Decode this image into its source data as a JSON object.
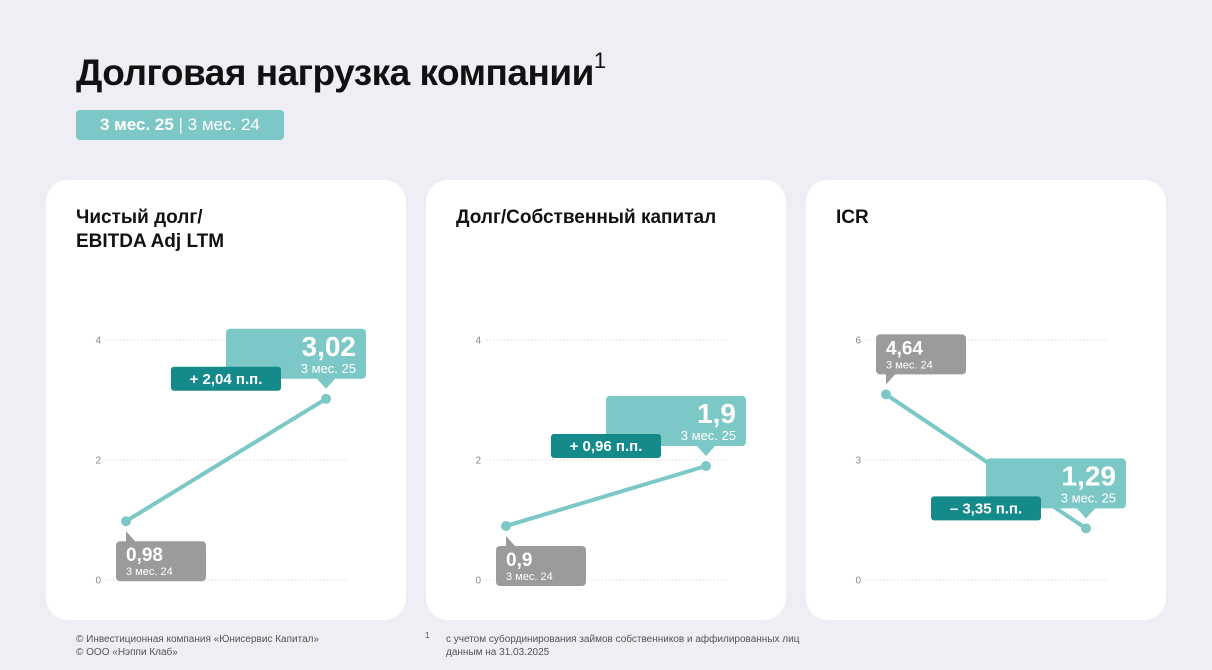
{
  "header": {
    "title": "Долговая нагрузка компании",
    "title_sup": "1",
    "period_current": "3 мес. 25",
    "period_sep": " | ",
    "period_prev": "3 мес. 24"
  },
  "colors": {
    "teal_light": "#7cc8c6",
    "teal_dark": "#158a8a",
    "grey": "#9b9b9b",
    "grid": "#dcdcdc"
  },
  "chart_data": [
    {
      "type": "line",
      "title": "Чистый долг/\nEBITDA Adj LTM",
      "ylim": [
        0,
        4
      ],
      "yticks": [
        0,
        2,
        4
      ],
      "ytick_labels": [
        "0",
        "2",
        "4"
      ],
      "x": [
        "3 мес. 24",
        "3 мес. 25"
      ],
      "values": [
        0.98,
        3.02
      ],
      "value_labels": [
        "0,98",
        "3,02"
      ],
      "period_labels": [
        "3 мес. 24",
        "3 мес. 25"
      ],
      "delta": "+ 2,04 п.п.",
      "grid": true
    },
    {
      "type": "line",
      "title": "Долг/Собственный капитал",
      "ylim": [
        0,
        4
      ],
      "yticks": [
        0,
        2,
        4
      ],
      "ytick_labels": [
        "0",
        "2",
        "4"
      ],
      "x": [
        "3 мес. 24",
        "3 мес. 25"
      ],
      "values": [
        0.9,
        1.9
      ],
      "value_labels": [
        "0,9",
        "1,9"
      ],
      "period_labels": [
        "3 мес. 24",
        "3 мес. 25"
      ],
      "delta": "+ 0,96 п.п.",
      "grid": true
    },
    {
      "type": "line",
      "title": "ICR",
      "ylim": [
        0,
        6
      ],
      "yticks": [
        0,
        3,
        6
      ],
      "ytick_labels": [
        "0",
        "3",
        "6"
      ],
      "x": [
        "3 мес. 24",
        "3 мес. 25"
      ],
      "values": [
        4.64,
        1.29
      ],
      "value_labels": [
        "4,64",
        "1,29"
      ],
      "period_labels": [
        "3 мес. 24",
        "3 мес. 25"
      ],
      "delta": "– 3,35 п.п.",
      "grid": true
    }
  ],
  "footer": {
    "copyright_1": "© Инвестиционная компания «Юнисервис Капитал»",
    "copyright_2": "© ООО «Нэппи Клаб»",
    "note_mark": "1",
    "note_1": "с учетом субординирования займов собственников и аффилированных лиц",
    "note_2": "данным на 31.03.2025"
  }
}
